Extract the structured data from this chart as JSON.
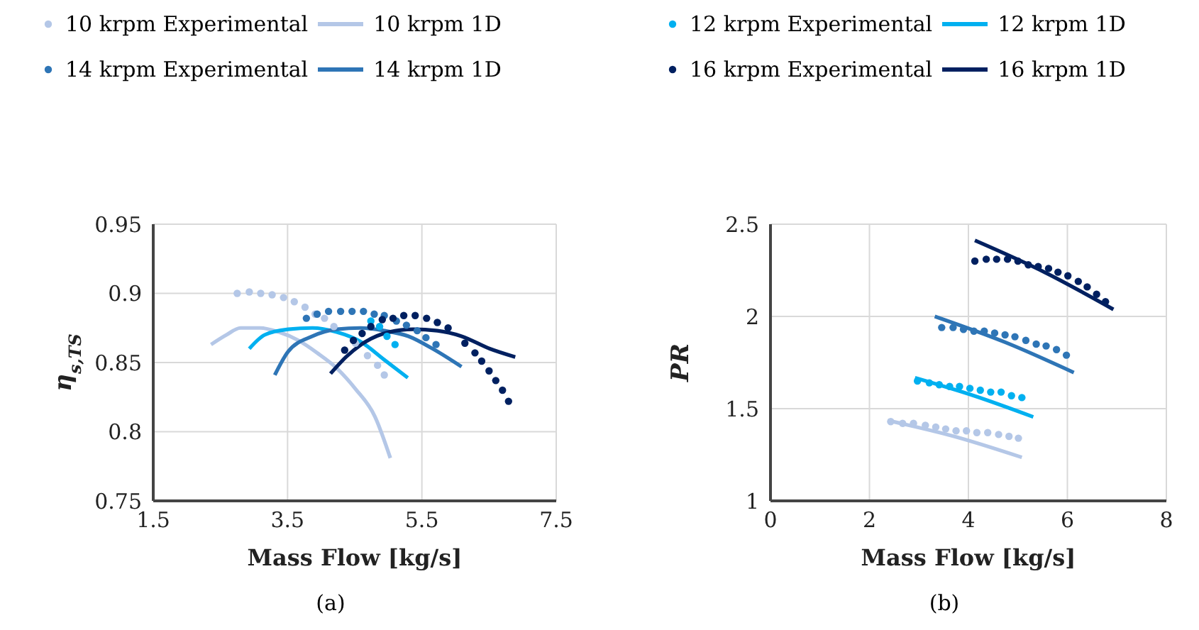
{
  "chart_data": [
    {
      "type": "scatter",
      "xlabel": "Mass Flow [kg/s]",
      "ylabel": "η$_{s,TS}$",
      "annotations": [
        "(a)"
      ],
      "xlim": [
        1.5,
        7.5
      ],
      "xticks": [
        1.5,
        3.5,
        5.5,
        7.5
      ],
      "ylim": [
        0.75,
        0.95
      ],
      "yticks": [
        0.75,
        0.8,
        0.85,
        0.9,
        0.95
      ],
      "grid": true,
      "legend": "top",
      "series": [
        {
          "name": "10 krpm Experimental",
          "marker": "circle",
          "color": "#b4c7e7",
          "x": [
            2.75,
            2.93,
            3.1,
            3.27,
            3.44,
            3.6,
            3.76,
            3.91,
            4.05,
            4.19,
            4.51,
            4.69,
            4.84,
            4.94
          ],
          "values": [
            0.9,
            0.901,
            0.9,
            0.899,
            0.897,
            0.894,
            0.89,
            0.885,
            0.882,
            0.876,
            0.864,
            0.855,
            0.848,
            0.841
          ]
        },
        {
          "name": "10 krpm 1D",
          "type": "line",
          "color": "#b4c7e7",
          "x": [
            2.36,
            2.59,
            2.8,
            3.09,
            3.37,
            3.66,
            3.94,
            4.23,
            4.51,
            4.8,
            5.03
          ],
          "values": [
            0.863,
            0.87,
            0.875,
            0.875,
            0.872,
            0.866,
            0.857,
            0.846,
            0.831,
            0.811,
            0.781
          ]
        },
        {
          "name": "12 krpm Experimental",
          "marker": "circle",
          "color": "#00b0f0",
          "x": [
            4.74,
            4.87,
            4.98,
            5.1
          ],
          "values": [
            0.88,
            0.876,
            0.869,
            0.863
          ]
        },
        {
          "name": "12 krpm 1D",
          "type": "line",
          "color": "#00b0f0",
          "x": [
            2.93,
            3.16,
            3.51,
            3.87,
            4.23,
            4.59,
            4.94,
            5.29
          ],
          "values": [
            0.86,
            0.87,
            0.874,
            0.875,
            0.872,
            0.865,
            0.852,
            0.839
          ]
        },
        {
          "name": "14 krpm Experimental",
          "marker": "circle",
          "color": "#2e75b6",
          "x": [
            3.78,
            3.94,
            4.11,
            4.29,
            4.46,
            4.63,
            4.79,
            4.94,
            5.12,
            5.27,
            5.43,
            5.56,
            5.71
          ],
          "values": [
            0.882,
            0.885,
            0.887,
            0.887,
            0.887,
            0.887,
            0.885,
            0.884,
            0.88,
            0.877,
            0.873,
            0.868,
            0.863
          ]
        },
        {
          "name": "14 krpm 1D",
          "type": "line",
          "color": "#2e75b6",
          "x": [
            3.31,
            3.51,
            3.87,
            4.23,
            4.59,
            4.94,
            5.3,
            5.66,
            6.09
          ],
          "values": [
            0.841,
            0.858,
            0.869,
            0.874,
            0.875,
            0.873,
            0.869,
            0.86,
            0.847
          ]
        },
        {
          "name": "16 krpm Experimental",
          "marker": "circle",
          "color": "#002060",
          "x": [
            4.35,
            4.48,
            4.61,
            4.74,
            4.91,
            5.07,
            5.23,
            5.4,
            5.57,
            5.73,
            5.89,
            6.14,
            6.29,
            6.39,
            6.5,
            6.6,
            6.7,
            6.79
          ],
          "values": [
            0.859,
            0.866,
            0.871,
            0.876,
            0.881,
            0.882,
            0.884,
            0.884,
            0.882,
            0.879,
            0.875,
            0.864,
            0.857,
            0.851,
            0.844,
            0.837,
            0.83,
            0.822
          ]
        },
        {
          "name": "16 krpm 1D",
          "type": "line",
          "color": "#002060",
          "x": [
            4.14,
            4.37,
            4.66,
            5.01,
            5.37,
            5.73,
            6.09,
            6.51,
            6.89
          ],
          "values": [
            0.842,
            0.854,
            0.865,
            0.872,
            0.874,
            0.873,
            0.869,
            0.86,
            0.854
          ]
        }
      ]
    },
    {
      "type": "scatter",
      "xlabel": "Mass Flow [kg/s]",
      "ylabel": "PR",
      "annotations": [
        "(b)"
      ],
      "xlim": [
        0,
        8
      ],
      "xticks": [
        0,
        2,
        4,
        6,
        8
      ],
      "ylim": [
        1,
        2.5
      ],
      "yticks": [
        1,
        1.5,
        2,
        2.5
      ],
      "grid": true,
      "series": [
        {
          "marker": "circle",
          "color": "#b4c7e7",
          "x": [
            2.43,
            2.67,
            2.89,
            3.13,
            3.34,
            3.54,
            3.75,
            3.96,
            4.17,
            4.39,
            4.61,
            4.82,
            5.01
          ],
          "values": [
            1.43,
            1.42,
            1.42,
            1.41,
            1.4,
            1.39,
            1.38,
            1.38,
            1.37,
            1.37,
            1.36,
            1.35,
            1.34
          ]
        },
        {
          "type": "line",
          "color": "#b4c7e7",
          "x": [
            2.37,
            3.68,
            5.08
          ],
          "values": [
            1.436,
            1.352,
            1.236
          ]
        },
        {
          "marker": "circle",
          "color": "#00b0f0",
          "x": [
            2.97,
            3.21,
            3.41,
            3.62,
            3.82,
            4.03,
            4.24,
            4.45,
            4.66,
            4.87,
            5.08
          ],
          "values": [
            1.65,
            1.64,
            1.63,
            1.62,
            1.62,
            1.61,
            1.6,
            1.59,
            1.59,
            1.57,
            1.56
          ]
        },
        {
          "type": "line",
          "color": "#00b0f0",
          "x": [
            2.92,
            4.12,
            5.31
          ],
          "values": [
            1.667,
            1.569,
            1.455
          ]
        },
        {
          "marker": "circle",
          "color": "#2e75b6",
          "x": [
            3.46,
            3.69,
            3.9,
            4.11,
            4.32,
            4.53,
            4.74,
            4.94,
            5.16,
            5.37,
            5.57,
            5.78,
            5.98
          ],
          "values": [
            1.94,
            1.94,
            1.93,
            1.92,
            1.92,
            1.91,
            1.9,
            1.89,
            1.87,
            1.85,
            1.84,
            1.82,
            1.79
          ]
        },
        {
          "type": "line",
          "color": "#2e75b6",
          "x": [
            3.32,
            4.75,
            6.13
          ],
          "values": [
            2.0,
            1.859,
            1.696
          ]
        },
        {
          "marker": "circle",
          "color": "#002060",
          "x": [
            4.13,
            4.36,
            4.57,
            4.79,
            5.0,
            5.21,
            5.41,
            5.62,
            5.81,
            6.01,
            6.22,
            6.4,
            6.59,
            6.77
          ],
          "values": [
            2.3,
            2.31,
            2.31,
            2.31,
            2.3,
            2.28,
            2.27,
            2.26,
            2.24,
            2.22,
            2.19,
            2.16,
            2.12,
            2.08
          ]
        },
        {
          "type": "line",
          "color": "#002060",
          "x": [
            4.13,
            5.55,
            6.93
          ],
          "values": [
            2.412,
            2.238,
            2.038
          ]
        }
      ]
    }
  ]
}
